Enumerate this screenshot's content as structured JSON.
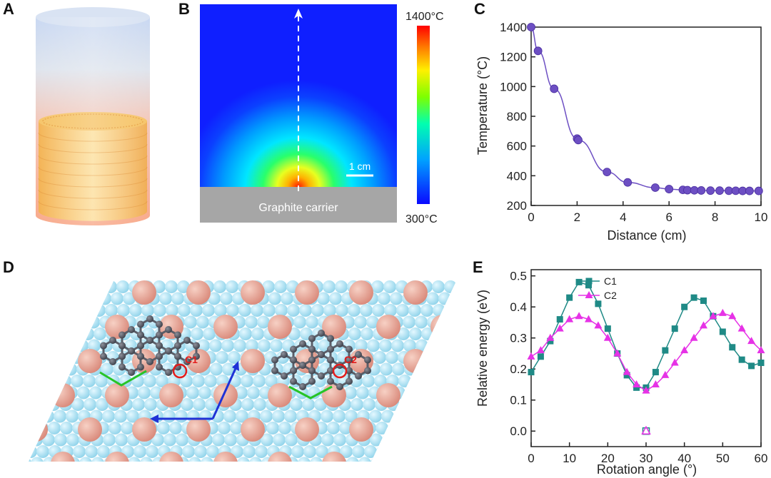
{
  "panel_labels": {
    "a": "A",
    "b": "B",
    "c": "C",
    "d": "D",
    "e": "E"
  },
  "panel_b": {
    "carrier_label": "Graphite carrier",
    "scale_label": "1 cm",
    "colorbar_max": "1400°C",
    "colorbar_min": "300°C"
  },
  "panel_d": {
    "site_labels": [
      "C1",
      "C2"
    ]
  },
  "colors": {
    "c1": "#1f8a86",
    "c2": "#e632e6",
    "c_curve": "#6d4fc3",
    "accent_red": "#e21b1b"
  },
  "chart_data": [
    {
      "type": "line",
      "panel": "C",
      "xlabel": "Distance (cm)",
      "ylabel": "Temperature (°C)",
      "xlim": [
        0,
        10
      ],
      "ylim": [
        200,
        1400
      ],
      "xticks": [
        "0",
        "2",
        "4",
        "6",
        "8",
        "10"
      ],
      "yticks": [
        "200",
        "400",
        "600",
        "800",
        "1000",
        "1200",
        "1400"
      ],
      "grid": false,
      "series": [
        {
          "x": [
            0,
            0.3,
            1,
            2,
            2.05,
            3.3,
            4.2,
            5.4,
            6,
            6.6,
            6.8,
            7.1,
            7.4,
            7.8,
            8.2,
            8.6,
            8.9,
            9.2,
            9.5,
            9.9
          ],
          "y": [
            1400,
            1240,
            985,
            650,
            640,
            425,
            355,
            320,
            310,
            305,
            303,
            302,
            301,
            300,
            300,
            299,
            299,
            298,
            298,
            298
          ]
        }
      ]
    },
    {
      "type": "line",
      "panel": "E",
      "xlabel": "Rotation angle (°)",
      "ylabel": "Relative energy (eV)",
      "xlim": [
        0,
        60
      ],
      "ylim": [
        -0.05,
        0.52
      ],
      "xticks": [
        "0",
        "10",
        "20",
        "30",
        "40",
        "50",
        "60"
      ],
      "yticks": [
        "0.0",
        "0.1",
        "0.2",
        "0.3",
        "0.4",
        "0.5"
      ],
      "legend": "top-left",
      "grid": false,
      "series": [
        {
          "name": "C1",
          "x": [
            0,
            2.5,
            5,
            7.5,
            10,
            12.5,
            15,
            17.5,
            20,
            22.5,
            25,
            27.5,
            30,
            32.5,
            35,
            37.5,
            40,
            42.5,
            45,
            47.5,
            50,
            52.5,
            55,
            57.5,
            60
          ],
          "y": [
            0.19,
            0.24,
            0.29,
            0.36,
            0.43,
            0.48,
            0.47,
            0.41,
            0.33,
            0.25,
            0.18,
            0.14,
            0.14,
            0.19,
            0.26,
            0.33,
            0.4,
            0.43,
            0.42,
            0.37,
            0.32,
            0.27,
            0.23,
            0.21,
            0.22
          ]
        },
        {
          "name": "C2",
          "x": [
            0,
            2.5,
            5,
            7.5,
            10,
            12.5,
            15,
            17.5,
            20,
            22.5,
            25,
            27.5,
            30,
            32.5,
            35,
            37.5,
            40,
            42.5,
            45,
            47.5,
            50,
            52.5,
            55,
            57.5,
            60
          ],
          "y": [
            0.24,
            0.26,
            0.3,
            0.33,
            0.36,
            0.37,
            0.36,
            0.34,
            0.3,
            0.25,
            0.19,
            0.15,
            0.13,
            0.15,
            0.18,
            0.22,
            0.26,
            0.3,
            0.34,
            0.37,
            0.38,
            0.37,
            0.33,
            0.29,
            0.26
          ]
        },
        {
          "name": "",
          "x": [
            30
          ],
          "y": [
            0.0
          ]
        }
      ]
    }
  ]
}
